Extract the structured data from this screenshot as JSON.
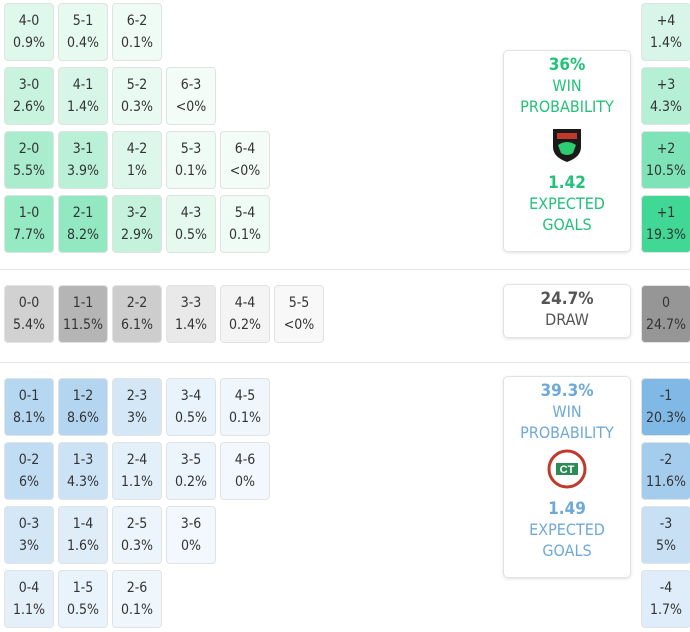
{
  "home": {
    "rows": [
      [
        {
          "score": "4-0",
          "pct": "0.9%"
        },
        {
          "score": "5-1",
          "pct": "0.4%"
        },
        {
          "score": "6-2",
          "pct": "0.1%"
        }
      ],
      [
        {
          "score": "3-0",
          "pct": "2.6%"
        },
        {
          "score": "4-1",
          "pct": "1.4%"
        },
        {
          "score": "5-2",
          "pct": "0.3%"
        },
        {
          "score": "6-3",
          "pct": "<0%"
        }
      ],
      [
        {
          "score": "2-0",
          "pct": "5.5%"
        },
        {
          "score": "3-1",
          "pct": "3.9%"
        },
        {
          "score": "4-2",
          "pct": "1%"
        },
        {
          "score": "5-3",
          "pct": "0.1%"
        },
        {
          "score": "6-4",
          "pct": "<0%"
        }
      ],
      [
        {
          "score": "1-0",
          "pct": "7.7%"
        },
        {
          "score": "2-1",
          "pct": "8.2%"
        },
        {
          "score": "3-2",
          "pct": "2.9%"
        },
        {
          "score": "4-3",
          "pct": "0.5%"
        },
        {
          "score": "5-4",
          "pct": "0.1%"
        }
      ]
    ],
    "win_pct": "36%",
    "win_label": "WIN PROBABILITY",
    "xg": "1.42",
    "xg_label": "EXPECTED GOALS"
  },
  "draw": {
    "rows": [
      [
        {
          "score": "0-0",
          "pct": "5.4%"
        },
        {
          "score": "1-1",
          "pct": "11.5%"
        },
        {
          "score": "2-2",
          "pct": "6.1%"
        },
        {
          "score": "3-3",
          "pct": "1.4%"
        },
        {
          "score": "4-4",
          "pct": "0.2%"
        },
        {
          "score": "5-5",
          "pct": "<0%"
        }
      ]
    ],
    "pct": "24.7%",
    "label": "DRAW"
  },
  "away": {
    "rows": [
      [
        {
          "score": "0-1",
          "pct": "8.1%"
        },
        {
          "score": "1-2",
          "pct": "8.6%"
        },
        {
          "score": "2-3",
          "pct": "3%"
        },
        {
          "score": "3-4",
          "pct": "0.5%"
        },
        {
          "score": "4-5",
          "pct": "0.1%"
        }
      ],
      [
        {
          "score": "0-2",
          "pct": "6%"
        },
        {
          "score": "1-3",
          "pct": "4.3%"
        },
        {
          "score": "2-4",
          "pct": "1.1%"
        },
        {
          "score": "3-5",
          "pct": "0.2%"
        },
        {
          "score": "4-6",
          "pct": "0%"
        }
      ],
      [
        {
          "score": "0-3",
          "pct": "3%"
        },
        {
          "score": "1-4",
          "pct": "1.6%"
        },
        {
          "score": "2-5",
          "pct": "0.3%"
        },
        {
          "score": "3-6",
          "pct": "0%"
        }
      ],
      [
        {
          "score": "0-4",
          "pct": "1.1%"
        },
        {
          "score": "1-5",
          "pct": "0.5%"
        },
        {
          "score": "2-6",
          "pct": "0.1%"
        }
      ]
    ],
    "win_pct": "39.3%",
    "win_label": "WIN PROBABILITY",
    "xg": "1.49",
    "xg_label": "EXPECTED GOALS"
  },
  "margins": [
    {
      "margin": "+4",
      "pct": "1.4%"
    },
    {
      "margin": "+3",
      "pct": "4.3%"
    },
    {
      "margin": "+2",
      "pct": "10.5%"
    },
    {
      "margin": "+1",
      "pct": "19.3%"
    },
    {
      "margin": "0",
      "pct": "24.7%"
    },
    {
      "margin": "-1",
      "pct": "20.3%"
    },
    {
      "margin": "-2",
      "pct": "11.6%"
    },
    {
      "margin": "-3",
      "pct": "5%"
    },
    {
      "margin": "-4",
      "pct": "1.7%"
    }
  ]
}
